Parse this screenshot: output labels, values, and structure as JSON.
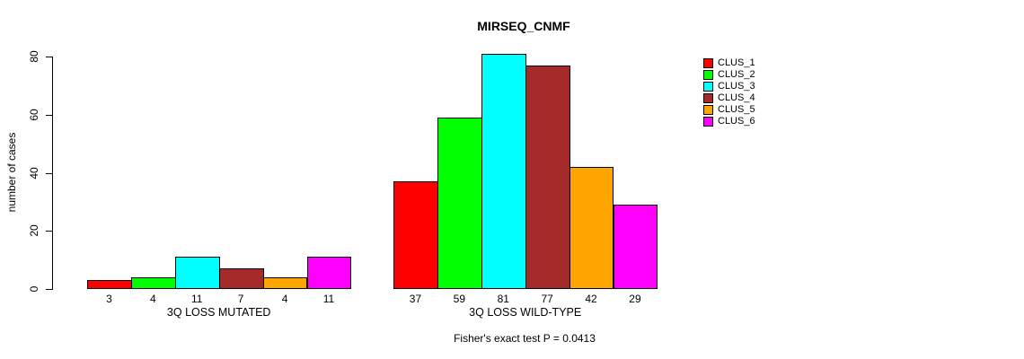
{
  "title": "MIRSEQ_CNMF",
  "chart_data": {
    "type": "bar",
    "title": "MIRSEQ_CNMF",
    "ylabel": "number of cases",
    "ylim": [
      0,
      80
    ],
    "yticks": [
      0,
      20,
      40,
      60,
      80
    ],
    "grid": false,
    "legend_position": "right",
    "categories": [
      "3Q LOSS MUTATED",
      "3Q LOSS WILD-TYPE"
    ],
    "groups": [
      {
        "label": "3Q LOSS MUTATED",
        "values": [
          3,
          4,
          11,
          7,
          4,
          11
        ]
      },
      {
        "label": "3Q LOSS WILD-TYPE",
        "values": [
          37,
          59,
          81,
          77,
          42,
          29
        ]
      }
    ],
    "series": [
      {
        "name": "CLUS_1",
        "color": "#FF0000"
      },
      {
        "name": "CLUS_2",
        "color": "#00FF00"
      },
      {
        "name": "CLUS_3",
        "color": "#00FFFF"
      },
      {
        "name": "CLUS_4",
        "color": "#A52A2A"
      },
      {
        "name": "CLUS_5",
        "color": "#FFA500"
      },
      {
        "name": "CLUS_6",
        "color": "#FF00FF"
      }
    ],
    "annotation": "Fisher's exact test P = 0.0413"
  }
}
